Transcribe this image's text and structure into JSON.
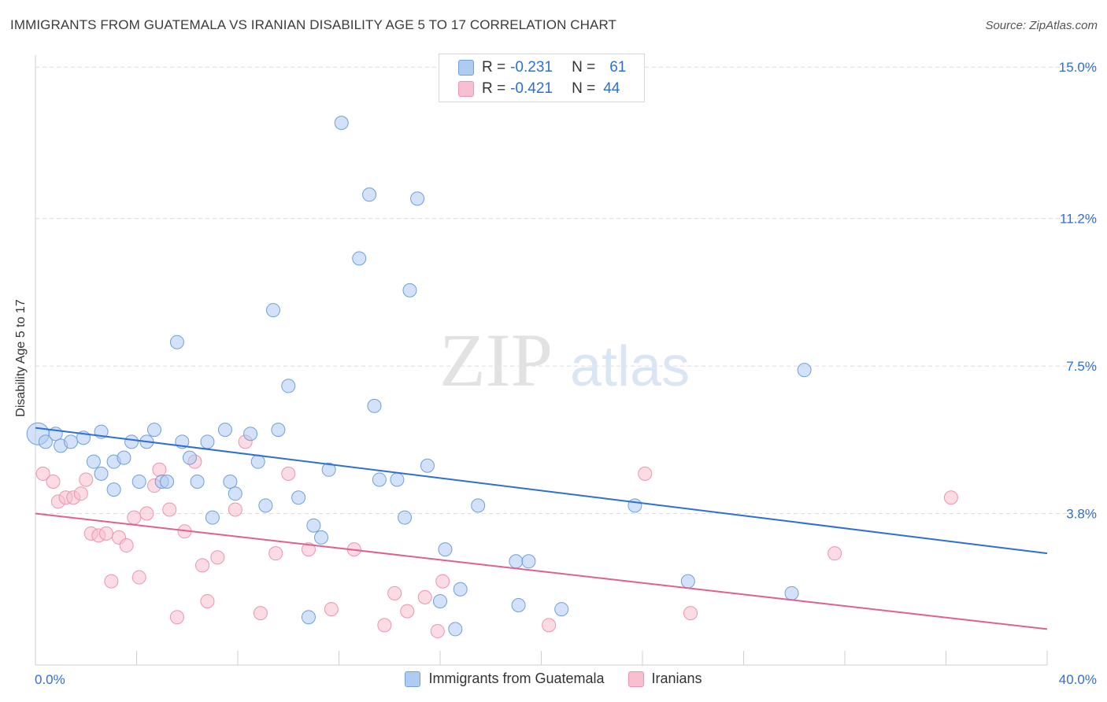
{
  "header": {
    "title": "IMMIGRANTS FROM GUATEMALA VS IRANIAN DISABILITY AGE 5 TO 17 CORRELATION CHART",
    "source": "Source: ZipAtlas.com"
  },
  "watermark": {
    "zip": "ZIP",
    "atlas": "atlas"
  },
  "stats": {
    "rows": [
      {
        "r_label": "R =",
        "r_value": "-0.231",
        "n_label": "N =",
        "n_value": "61"
      },
      {
        "r_label": "R =",
        "r_value": "-0.421",
        "n_label": "N =",
        "n_value": "44"
      }
    ]
  },
  "legend": {
    "items": [
      {
        "label": "Immigrants from Guatemala"
      },
      {
        "label": "Iranians"
      }
    ]
  },
  "chart_data": {
    "type": "scatter",
    "title": "IMMIGRANTS FROM GUATEMALA VS IRANIAN DISABILITY AGE 5 TO 17 CORRELATION CHART",
    "xlabel": "",
    "ylabel": "Disability Age 5 to 17",
    "xlim": [
      0,
      40
    ],
    "ylim": [
      0,
      15.3
    ],
    "x_tick_labels": [
      "0.0%",
      "40.0%"
    ],
    "y_ticks": [
      3.8,
      7.5,
      11.2,
      15.0
    ],
    "y_tick_labels": [
      "3.8%",
      "7.5%",
      "11.2%",
      "15.0%"
    ],
    "grid": "horizontal dashed",
    "legend_position": "bottom",
    "colors": {
      "guatemala_fill": "#aecbf2",
      "guatemala_stroke": "#6f9fe0",
      "guatemala_line": "#2d6fd6",
      "iranians_fill": "#f7bfd0",
      "iranians_stroke": "#ee93b0",
      "iranians_line": "#e0608f",
      "value_text": "#2d6fd6"
    },
    "series": [
      {
        "name": "Immigrants from Guatemala",
        "r": -0.231,
        "n": 61,
        "trend": {
          "x": [
            0,
            40
          ],
          "y": [
            5.95,
            2.8
          ]
        },
        "points": [
          [
            0.1,
            5.8
          ],
          [
            0.4,
            5.6
          ],
          [
            0.8,
            5.8
          ],
          [
            1.0,
            5.5
          ],
          [
            1.4,
            5.6
          ],
          [
            1.9,
            5.7
          ],
          [
            2.3,
            5.1
          ],
          [
            2.6,
            5.85
          ],
          [
            2.6,
            4.8
          ],
          [
            3.1,
            5.1
          ],
          [
            3.1,
            4.4
          ],
          [
            3.5,
            5.2
          ],
          [
            3.8,
            5.6
          ],
          [
            4.1,
            4.6
          ],
          [
            4.4,
            5.6
          ],
          [
            4.7,
            5.9
          ],
          [
            5.0,
            4.6
          ],
          [
            5.2,
            4.6
          ],
          [
            5.6,
            8.1
          ],
          [
            5.8,
            5.6
          ],
          [
            6.1,
            5.2
          ],
          [
            6.4,
            4.6
          ],
          [
            6.8,
            5.6
          ],
          [
            7.0,
            3.7
          ],
          [
            7.5,
            5.9
          ],
          [
            7.7,
            4.6
          ],
          [
            7.9,
            4.3
          ],
          [
            8.5,
            5.8
          ],
          [
            8.8,
            5.1
          ],
          [
            9.1,
            4.0
          ],
          [
            9.4,
            8.9
          ],
          [
            9.6,
            5.9
          ],
          [
            10.0,
            7.0
          ],
          [
            10.4,
            4.2
          ],
          [
            10.8,
            1.2
          ],
          [
            11.0,
            3.5
          ],
          [
            11.3,
            3.2
          ],
          [
            11.6,
            4.9
          ],
          [
            12.1,
            13.6
          ],
          [
            12.8,
            10.2
          ],
          [
            13.2,
            11.8
          ],
          [
            13.4,
            6.5
          ],
          [
            13.6,
            4.65
          ],
          [
            14.3,
            4.65
          ],
          [
            14.6,
            3.7
          ],
          [
            14.8,
            9.4
          ],
          [
            15.1,
            11.7
          ],
          [
            15.5,
            5.0
          ],
          [
            16.0,
            1.6
          ],
          [
            16.2,
            2.9
          ],
          [
            16.6,
            0.9
          ],
          [
            16.8,
            1.9
          ],
          [
            17.5,
            4.0
          ],
          [
            19.0,
            2.6
          ],
          [
            19.1,
            1.5
          ],
          [
            19.5,
            2.6
          ],
          [
            20.8,
            1.4
          ],
          [
            23.7,
            4.0
          ],
          [
            25.8,
            2.1
          ],
          [
            29.9,
            1.8
          ],
          [
            30.4,
            7.4
          ]
        ]
      },
      {
        "name": "Iranians",
        "r": -0.421,
        "n": 44,
        "trend": {
          "x": [
            0,
            40
          ],
          "y": [
            3.8,
            0.9
          ]
        },
        "points": [
          [
            0.3,
            4.8
          ],
          [
            0.7,
            4.6
          ],
          [
            0.9,
            4.1
          ],
          [
            1.2,
            4.2
          ],
          [
            1.5,
            4.2
          ],
          [
            1.8,
            4.3
          ],
          [
            2.0,
            4.65
          ],
          [
            2.2,
            3.3
          ],
          [
            2.5,
            3.25
          ],
          [
            2.8,
            3.3
          ],
          [
            3.0,
            2.1
          ],
          [
            3.3,
            3.2
          ],
          [
            3.6,
            3.0
          ],
          [
            3.9,
            3.7
          ],
          [
            4.1,
            2.2
          ],
          [
            4.4,
            3.8
          ],
          [
            4.7,
            4.5
          ],
          [
            4.9,
            4.9
          ],
          [
            5.3,
            3.9
          ],
          [
            5.6,
            1.2
          ],
          [
            5.9,
            3.35
          ],
          [
            6.3,
            5.1
          ],
          [
            6.6,
            2.5
          ],
          [
            6.8,
            1.6
          ],
          [
            7.2,
            2.7
          ],
          [
            7.9,
            3.9
          ],
          [
            8.3,
            5.6
          ],
          [
            8.9,
            1.3
          ],
          [
            9.5,
            2.8
          ],
          [
            10.0,
            4.8
          ],
          [
            10.8,
            2.9
          ],
          [
            11.7,
            1.4
          ],
          [
            12.6,
            2.9
          ],
          [
            13.8,
            1.0
          ],
          [
            14.2,
            1.8
          ],
          [
            14.7,
            1.35
          ],
          [
            15.4,
            1.7
          ],
          [
            15.9,
            0.85
          ],
          [
            16.1,
            2.1
          ],
          [
            20.3,
            1.0
          ],
          [
            24.1,
            4.8
          ],
          [
            25.9,
            1.3
          ],
          [
            31.6,
            2.8
          ],
          [
            36.2,
            4.2
          ]
        ]
      }
    ]
  }
}
